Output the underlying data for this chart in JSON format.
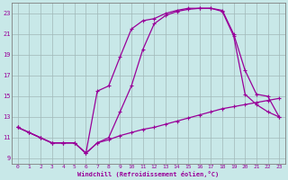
{
  "background_color": "#c8e8e8",
  "grid_color": "#a0b8b8",
  "line_color": "#990099",
  "xlabel": "Windchill (Refroidissement éolien,°C)",
  "ylabel_ticks": [
    9,
    11,
    13,
    15,
    17,
    19,
    21,
    23
  ],
  "xlabel_ticks": [
    0,
    1,
    2,
    3,
    4,
    5,
    6,
    7,
    8,
    9,
    10,
    11,
    12,
    13,
    14,
    15,
    16,
    17,
    18,
    19,
    20,
    21,
    22,
    23
  ],
  "xlim": [
    -0.5,
    23.5
  ],
  "ylim": [
    8.5,
    24.0
  ],
  "curve1_x": [
    0,
    1,
    2,
    3,
    4,
    5,
    6,
    7,
    8,
    9,
    10,
    11,
    12,
    13,
    14,
    15,
    16,
    17,
    18,
    19,
    20,
    21,
    22,
    23
  ],
  "curve1_y": [
    12.0,
    11.5,
    11.0,
    10.5,
    10.5,
    10.5,
    9.5,
    10.5,
    10.8,
    11.2,
    11.5,
    11.8,
    12.0,
    12.3,
    12.6,
    12.9,
    13.2,
    13.5,
    13.8,
    14.0,
    14.2,
    14.4,
    14.6,
    14.8
  ],
  "curve2_x": [
    0,
    1,
    2,
    3,
    4,
    5,
    6,
    7,
    8,
    9,
    10,
    11,
    12,
    13,
    14,
    15,
    16,
    17,
    18,
    19,
    20,
    21,
    22,
    23
  ],
  "curve2_y": [
    12.0,
    11.5,
    11.0,
    10.5,
    10.5,
    10.5,
    9.5,
    10.5,
    11.0,
    13.5,
    16.0,
    19.5,
    22.0,
    22.8,
    23.2,
    23.4,
    23.5,
    23.5,
    23.3,
    21.0,
    17.5,
    15.2,
    15.0,
    13.0
  ],
  "curve3_x": [
    0,
    1,
    2,
    3,
    4,
    5,
    6,
    7,
    8,
    9,
    10,
    11,
    12,
    13,
    14,
    15,
    16,
    17,
    18,
    19,
    20,
    21,
    22,
    23
  ],
  "curve3_y": [
    12.0,
    11.5,
    11.0,
    10.5,
    10.5,
    10.5,
    9.5,
    15.5,
    16.0,
    18.8,
    21.5,
    22.3,
    22.5,
    23.0,
    23.3,
    23.5,
    23.5,
    23.5,
    23.2,
    20.8,
    15.2,
    14.2,
    13.5,
    13.0
  ]
}
